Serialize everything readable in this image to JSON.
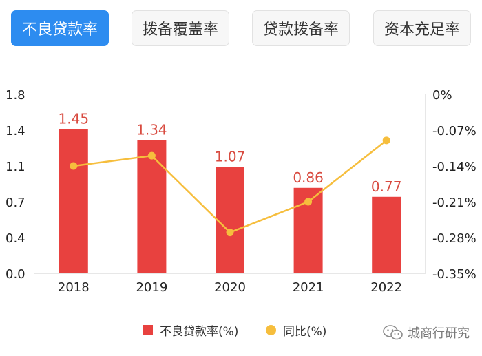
{
  "tabs": [
    {
      "label": "不良贷款率",
      "active": true
    },
    {
      "label": "拨备覆盖率",
      "active": false
    },
    {
      "label": "贷款拨备率",
      "active": false
    },
    {
      "label": "资本充足率",
      "active": false
    }
  ],
  "colors": {
    "active_tab": "#2d8cf0",
    "bar": "#e8413f",
    "bar_label": "#d84a3f",
    "line": "#f6be3d"
  },
  "chart_data": {
    "type": "bar",
    "categories": [
      "2018",
      "2019",
      "2020",
      "2021",
      "2022"
    ],
    "series": [
      {
        "name": "不良贷款率(%)",
        "type": "bar",
        "axis": "left",
        "values": [
          1.45,
          1.34,
          1.07,
          0.86,
          0.77
        ]
      },
      {
        "name": "同比(%)",
        "type": "line",
        "axis": "right",
        "values": [
          -0.14,
          -0.12,
          -0.27,
          -0.21,
          -0.09
        ]
      }
    ],
    "data_labels": [
      "1.45",
      "1.34",
      "1.07",
      "0.86",
      "0.77"
    ],
    "y_left": {
      "ticks": [
        "0.0",
        "0.4",
        "0.7",
        "1.1",
        "1.4",
        "1.8"
      ],
      "range": [
        0,
        1.8
      ]
    },
    "y_right": {
      "ticks": [
        "-0.35%",
        "-0.28%",
        "-0.21%",
        "-0.14%",
        "-0.07%",
        "0%"
      ],
      "range": [
        -0.35,
        0
      ]
    },
    "legend_position": "bottom",
    "grid": false
  },
  "watermark": "城商行研究"
}
